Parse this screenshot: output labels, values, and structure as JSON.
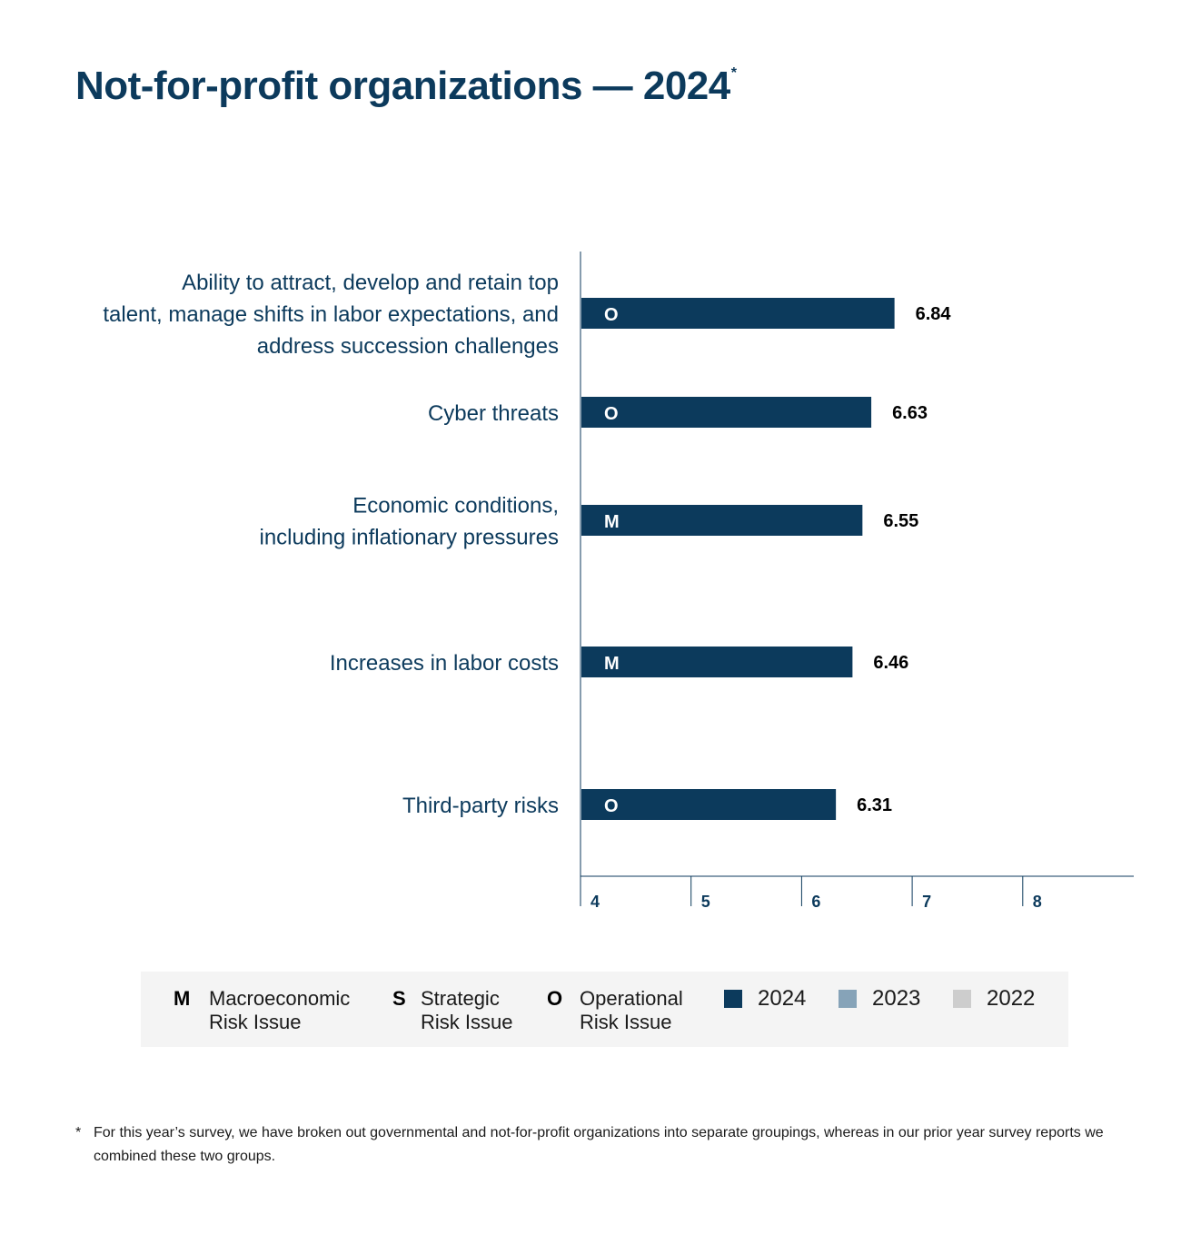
{
  "title": {
    "text": "Not-for-profit organizations — 2024",
    "marker": "*"
  },
  "chart_data": {
    "type": "bar",
    "orientation": "horizontal",
    "categories": [
      "Ability to attract, develop and retain top talent, manage shifts in labor expectations, and address succession challenges",
      "Cyber threats",
      "Economic conditions, including inflationary pressures",
      "Increases in labor costs",
      "Third-party risks"
    ],
    "category_lines": [
      [
        "Ability to attract, develop and retain top",
        "talent, manage shifts in labor expectations, and",
        "address succession challenges"
      ],
      [
        "Cyber threats"
      ],
      [
        "Economic conditions,",
        "including inflationary pressures"
      ],
      [
        "Increases in labor costs"
      ],
      [
        "Third-party risks"
      ]
    ],
    "series": [
      {
        "name": "2024",
        "values": [
          6.84,
          6.63,
          6.55,
          6.46,
          6.31
        ],
        "value_labels": [
          "6.84",
          "6.63",
          "6.55",
          "6.46",
          "6.31"
        ],
        "risk_codes": [
          "O",
          "O",
          "M",
          "M",
          "O"
        ]
      }
    ],
    "xlim": [
      4,
      9
    ],
    "xticks": [
      "4",
      "5",
      "6",
      "7",
      "8"
    ],
    "xlabel": "",
    "ylabel": "",
    "grid": false,
    "legend_position": "bottom",
    "colors": {
      "2024": "#0c3a5c",
      "2023": "#86a3b8",
      "2022": "#cdcdcd",
      "category_text": "#0c3a5c",
      "value_text": "#000000"
    }
  },
  "legend": {
    "risk_types": [
      {
        "code": "M",
        "line1": "Macroeconomic",
        "line2": "Risk Issue"
      },
      {
        "code": "S",
        "line1": "Strategic",
        "line2": "Risk Issue"
      },
      {
        "code": "O",
        "line1": "Operational",
        "line2": "Risk Issue"
      }
    ],
    "years": [
      {
        "label": "2024",
        "color": "#0c3a5c"
      },
      {
        "label": "2023",
        "color": "#86a3b8"
      },
      {
        "label": "2022",
        "color": "#cdcdcd"
      }
    ]
  },
  "footnote": {
    "marker": "*",
    "text": "For this year’s survey, we have broken out governmental and not-for-profit organizations into separate groupings, whereas in our prior year survey reports we combined these two groups."
  }
}
